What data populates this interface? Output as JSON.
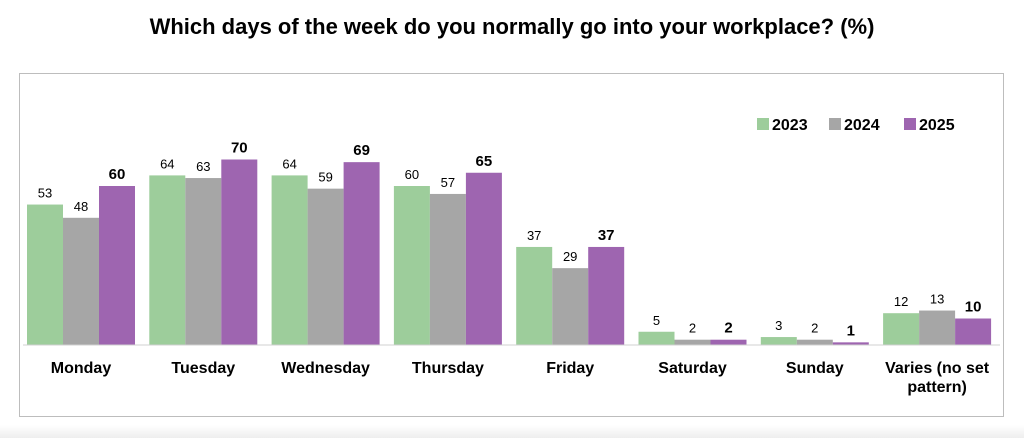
{
  "chart_data": {
    "type": "bar",
    "title": "Which days of the week do you normally go into your workplace? (%)",
    "categories": [
      "Monday",
      "Tuesday",
      "Wednesday",
      "Thursday",
      "Friday",
      "Saturday",
      "Sunday",
      "Varies (no set pattern)"
    ],
    "series": [
      {
        "name": "2023",
        "color": "#9dcd9b",
        "values": [
          53,
          64,
          64,
          60,
          37,
          5,
          3,
          12
        ]
      },
      {
        "name": "2024",
        "color": "#a6a6a6",
        "values": [
          48,
          63,
          59,
          57,
          29,
          2,
          2,
          13
        ]
      },
      {
        "name": "2025",
        "color": "#9e65b0",
        "values": [
          60,
          70,
          69,
          65,
          37,
          2,
          1,
          10
        ]
      }
    ],
    "highlight_series": "2025",
    "legend_position": "top-right",
    "grid": false,
    "ylim": [
      0,
      75
    ],
    "xlabel": "",
    "ylabel": ""
  }
}
